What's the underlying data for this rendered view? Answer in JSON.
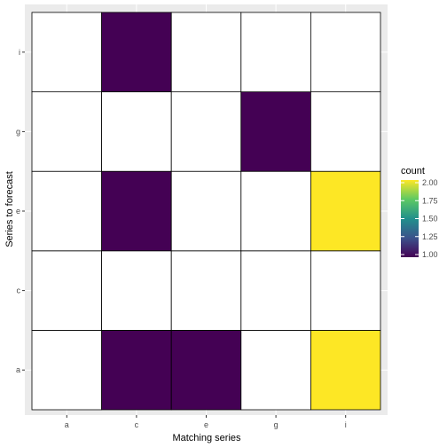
{
  "chart_data": {
    "type": "heatmap",
    "title": "",
    "xlabel": "Matching series",
    "ylabel": "Series to forecast",
    "x_categories": [
      "a",
      "c",
      "e",
      "g",
      "i"
    ],
    "y_categories": [
      "a",
      "c",
      "e",
      "g",
      "i"
    ],
    "cells": [
      {
        "x": "c",
        "y": "a",
        "count": 1
      },
      {
        "x": "e",
        "y": "a",
        "count": 1
      },
      {
        "x": "i",
        "y": "a",
        "count": 2
      },
      {
        "x": "c",
        "y": "e",
        "count": 1
      },
      {
        "x": "i",
        "y": "e",
        "count": 2
      },
      {
        "x": "g",
        "y": "g",
        "count": 1
      },
      {
        "x": "c",
        "y": "i",
        "count": 1
      }
    ],
    "empty_fill": "#ffffff",
    "legend": {
      "title": "count",
      "placement": "right",
      "ticks": [
        "1.00",
        "1.25",
        "1.50",
        "1.75",
        "2.00"
      ],
      "min": 1,
      "max": 2,
      "colors": [
        "#440154",
        "#3b528b",
        "#21908c",
        "#5dc963",
        "#fde725"
      ]
    },
    "panel_background": "#ebebeb",
    "grid": true
  }
}
